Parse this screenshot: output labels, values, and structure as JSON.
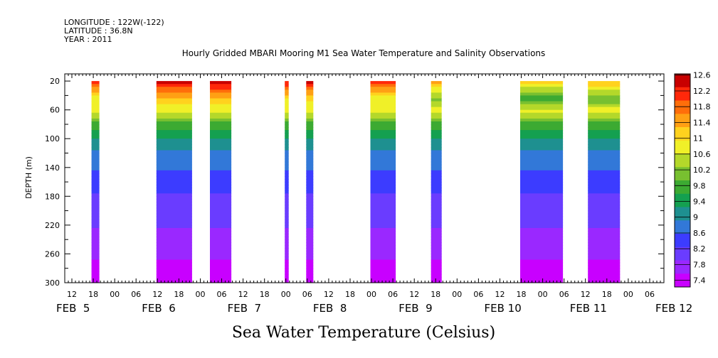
{
  "header": {
    "longitude": "LONGITUDE : 122W(-122)",
    "latitude": "LATITUDE : 36.8N",
    "year": "YEAR : 2011"
  },
  "chart_data": {
    "type": "heatmap",
    "title": "Hourly Gridded MBARI Mooring M1 Sea Water Temperature and Salinity Observations",
    "bottom_title": "Sea Water Temperature (Celsius)",
    "ylabel": "DEPTH (m)",
    "y_ticks": [
      20,
      60,
      100,
      140,
      180,
      220,
      260,
      300
    ],
    "ylim": [
      10,
      300
    ],
    "y_inverted": true,
    "x_hour_ticks": [
      {
        "t": 12,
        "label": "12"
      },
      {
        "t": 18,
        "label": "18"
      },
      {
        "t": 24,
        "label": "00"
      },
      {
        "t": 30,
        "label": "06"
      },
      {
        "t": 36,
        "label": "12"
      },
      {
        "t": 42,
        "label": "18"
      },
      {
        "t": 48,
        "label": "00"
      },
      {
        "t": 54,
        "label": "06"
      },
      {
        "t": 60,
        "label": "12"
      },
      {
        "t": 66,
        "label": "18"
      },
      {
        "t": 72,
        "label": "00"
      },
      {
        "t": 78,
        "label": "06"
      },
      {
        "t": 84,
        "label": "12"
      },
      {
        "t": 90,
        "label": "18"
      },
      {
        "t": 96,
        "label": "00"
      },
      {
        "t": 102,
        "label": "06"
      },
      {
        "t": 108,
        "label": "12"
      },
      {
        "t": 114,
        "label": "18"
      },
      {
        "t": 120,
        "label": "00"
      },
      {
        "t": 126,
        "label": "06"
      },
      {
        "t": 132,
        "label": "12"
      },
      {
        "t": 138,
        "label": "18"
      },
      {
        "t": 144,
        "label": "00"
      },
      {
        "t": 150,
        "label": "06"
      },
      {
        "t": 156,
        "label": "12"
      },
      {
        "t": 162,
        "label": "18"
      },
      {
        "t": 168,
        "label": "00"
      },
      {
        "t": 174,
        "label": "06"
      }
    ],
    "x_day_labels": [
      {
        "t": 0,
        "label": "FEB  5"
      },
      {
        "t": 24,
        "label": "FEB  6"
      },
      {
        "t": 48,
        "label": "FEB  7"
      },
      {
        "t": 72,
        "label": "FEB  8"
      },
      {
        "t": 96,
        "label": "FEB  9"
      },
      {
        "t": 120,
        "label": "FEB 10"
      },
      {
        "t": 144,
        "label": "FEB 11"
      },
      {
        "t": 168,
        "label": "FEB 12"
      }
    ],
    "xlim_hours": [
      10,
      178
    ],
    "colorbar": {
      "min": 7.4,
      "max": 12.8,
      "labels": [
        "12.6",
        "12.2",
        "11.8",
        "11.4",
        "11",
        "10.6",
        "10.2",
        "9.8",
        "9.4",
        "9",
        "8.6",
        "8.2",
        "7.8",
        "7.4"
      ]
    },
    "data_segments": [
      {
        "start_hour": 17.5,
        "end_hour": 19.7,
        "surface_temp": 12.3
      },
      {
        "start_hour": 35.7,
        "end_hour": 45.7,
        "surface_temp": 12.7
      },
      {
        "start_hour": 50.7,
        "end_hour": 56.7,
        "surface_temp": 12.8
      },
      {
        "start_hour": 71.7,
        "end_hour": 72.8,
        "surface_temp": 12.5
      },
      {
        "start_hour": 77.7,
        "end_hour": 79.7,
        "surface_temp": 12.6
      },
      {
        "start_hour": 95.7,
        "end_hour": 102.8,
        "surface_temp": 12.3
      },
      {
        "start_hour": 112.7,
        "end_hour": 115.7,
        "surface_temp": 11.7
      },
      {
        "start_hour": 137.7,
        "end_hour": 149.7,
        "surface_temp": 11.3
      },
      {
        "start_hour": 156.7,
        "end_hour": 165.7,
        "surface_temp": 11.5
      }
    ]
  }
}
